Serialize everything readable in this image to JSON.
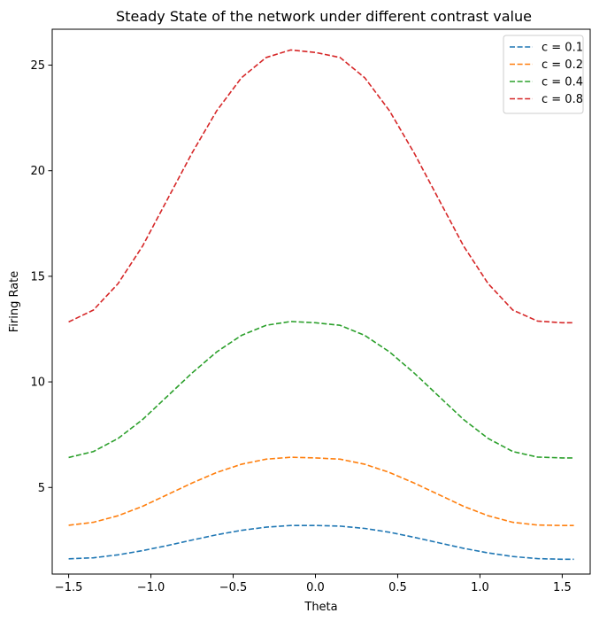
{
  "chart_data": {
    "type": "line",
    "title": "Steady State of the network under different contrast value",
    "xlabel": "Theta",
    "ylabel": "Firing Rate",
    "xlim": [
      -1.6,
      1.67
    ],
    "ylim": [
      0.9,
      26.7
    ],
    "xticks": [
      -1.5,
      -1.0,
      -0.5,
      0.0,
      0.5,
      1.0,
      1.5
    ],
    "xtick_labels": [
      "−1.5",
      "−1.0",
      "−0.5",
      "0.0",
      "0.5",
      "1.0",
      "1.5"
    ],
    "yticks": [
      5,
      10,
      15,
      20,
      25
    ],
    "ytick_labels": [
      "5",
      "10",
      "15",
      "20",
      "25"
    ],
    "grid": false,
    "legend_position": "top-right",
    "line_style": "dashed",
    "x": [
      -1.5,
      -1.35,
      -1.2,
      -1.05,
      -0.9,
      -0.75,
      -0.6,
      -0.45,
      -0.3,
      -0.15,
      0.0,
      0.15,
      0.3,
      0.45,
      0.6,
      0.75,
      0.9,
      1.05,
      1.2,
      1.35,
      1.5,
      1.5708
    ],
    "series": [
      {
        "name": "c = 0.1",
        "color": "#1f77b4",
        "values": [
          1.62,
          1.67,
          1.81,
          2.01,
          2.25,
          2.51,
          2.76,
          2.97,
          3.12,
          3.2,
          3.2,
          3.17,
          3.06,
          2.88,
          2.64,
          2.38,
          2.12,
          1.9,
          1.73,
          1.63,
          1.6,
          1.6
        ]
      },
      {
        "name": "c = 0.2",
        "color": "#ff7f0e",
        "values": [
          3.21,
          3.35,
          3.66,
          4.11,
          4.66,
          5.21,
          5.71,
          6.1,
          6.34,
          6.43,
          6.4,
          6.34,
          6.1,
          5.71,
          5.21,
          4.66,
          4.11,
          3.66,
          3.35,
          3.22,
          3.2,
          3.2
        ]
      },
      {
        "name": "c = 0.4",
        "color": "#2ca02c",
        "values": [
          6.42,
          6.7,
          7.32,
          8.22,
          9.32,
          10.42,
          11.42,
          12.2,
          12.68,
          12.86,
          12.8,
          12.68,
          12.2,
          11.42,
          10.42,
          9.32,
          8.22,
          7.32,
          6.7,
          6.44,
          6.4,
          6.4
        ]
      },
      {
        "name": "c = 0.8",
        "color": "#d62728",
        "values": [
          12.84,
          13.4,
          14.65,
          16.44,
          18.64,
          20.84,
          22.84,
          24.4,
          25.36,
          25.72,
          25.6,
          25.36,
          24.4,
          22.84,
          20.84,
          18.64,
          16.44,
          14.65,
          13.4,
          12.88,
          12.8,
          12.8
        ]
      }
    ]
  }
}
